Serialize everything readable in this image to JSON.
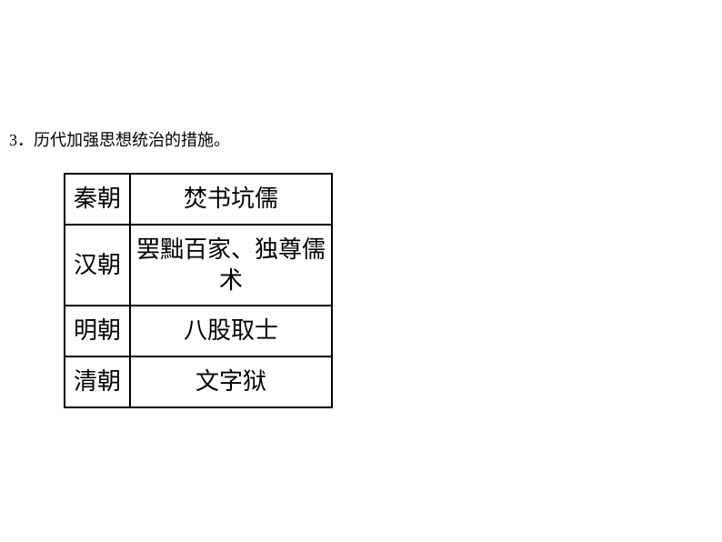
{
  "heading": "3．历代加强思想统治的措施。",
  "table": {
    "rows": [
      {
        "dynasty": "秦朝",
        "measure": "焚书坑儒"
      },
      {
        "dynasty": "汉朝",
        "measure": "罢黜百家、独尊儒术"
      },
      {
        "dynasty": "明朝",
        "measure": "八股取士"
      },
      {
        "dynasty": "清朝",
        "measure": "文字狱"
      }
    ],
    "border_color": "#000000",
    "text_color": "#000000",
    "background_color": "#ffffff",
    "dynasty_col_width": 72,
    "measure_col_width": 222,
    "font_size": 26
  }
}
